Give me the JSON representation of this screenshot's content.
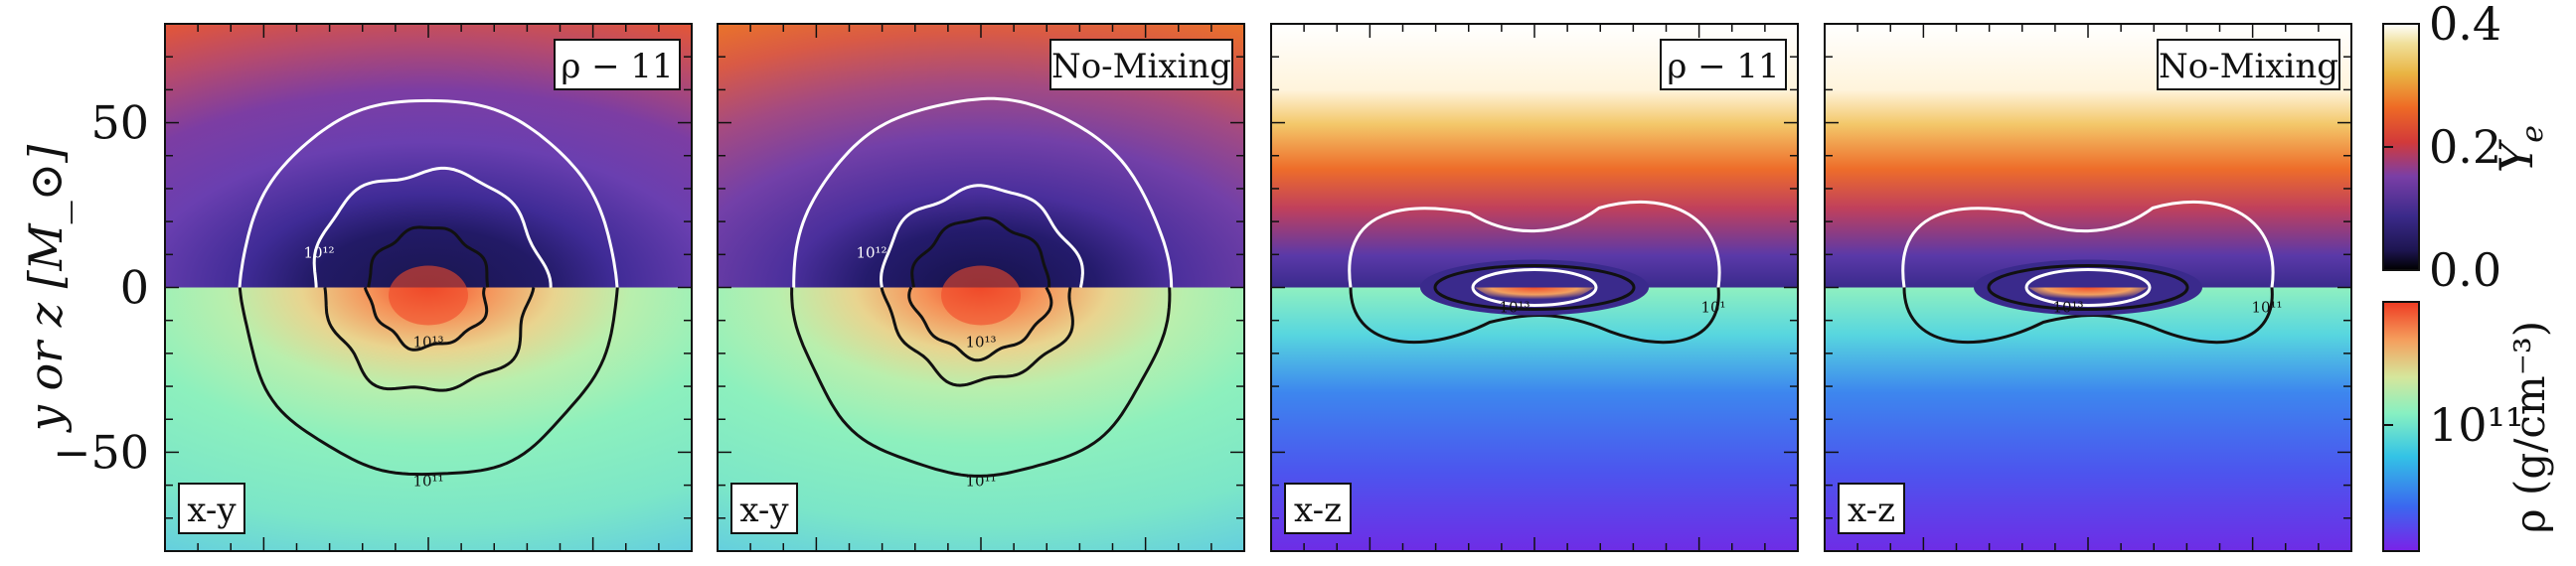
{
  "chart_data": {
    "type": "heatmap",
    "ylabel": "y or z [M_⊙]",
    "y_tick_labels": [
      "50",
      "0",
      "−50"
    ],
    "y_ticks": [
      50,
      0,
      -50
    ],
    "ylim": [
      -80,
      80
    ],
    "xlim": [
      -80,
      80
    ],
    "panels": [
      {
        "top_label": "ρ − 11",
        "bottom_label": "x-y",
        "plane": "x-y",
        "contours": {
          "Ye_half": [
            "10¹²"
          ],
          "rho_half": [
            "10¹³",
            "10¹¹"
          ]
        }
      },
      {
        "top_label": "No-Mixing",
        "bottom_label": "x-y",
        "plane": "x-y",
        "contours": {
          "Ye_half": [
            "10¹²"
          ],
          "rho_half": [
            "10¹³",
            "10¹¹"
          ]
        }
      },
      {
        "top_label": "ρ − 11",
        "bottom_label": "x-z",
        "plane": "x-z",
        "contours": {
          "Ye_half": [],
          "rho_half": [
            "10¹³",
            "10¹"
          ]
        }
      },
      {
        "top_label": "No-Mixing",
        "bottom_label": "x-z",
        "plane": "x-z",
        "contours": {
          "Ye_half": [],
          "rho_half": [
            "10¹³",
            "10¹¹"
          ]
        }
      }
    ],
    "colorbars": [
      {
        "quantity": "Y_e",
        "label_base": "Y",
        "label_sub": "e",
        "range": [
          0.0,
          0.4
        ],
        "tick_labels": [
          "0.4",
          "0.2",
          "0.0"
        ],
        "ticks": [
          0.4,
          0.2,
          0.0
        ],
        "colormap": "CMRmap"
      },
      {
        "quantity": "rho",
        "label": "ρ (g/cm⁻³)",
        "tick_labels": [
          "10¹¹"
        ],
        "ticks": [
          11
        ],
        "colormap": "rainbow"
      }
    ]
  }
}
